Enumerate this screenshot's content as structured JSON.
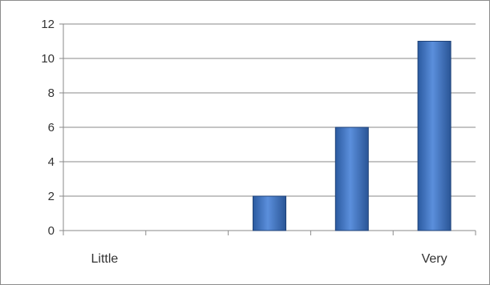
{
  "chart_data": {
    "type": "bar",
    "categories": [
      "Little",
      "",
      "",
      "",
      "Very"
    ],
    "values": [
      0,
      0,
      2,
      6,
      11
    ],
    "title": "",
    "xlabel": "",
    "ylabel": "",
    "ylim": [
      0,
      12
    ],
    "yticks": [
      "0",
      "2",
      "4",
      "6",
      "8",
      "10",
      "12"
    ],
    "grid": true,
    "bar_color": "#3b6fbf"
  }
}
